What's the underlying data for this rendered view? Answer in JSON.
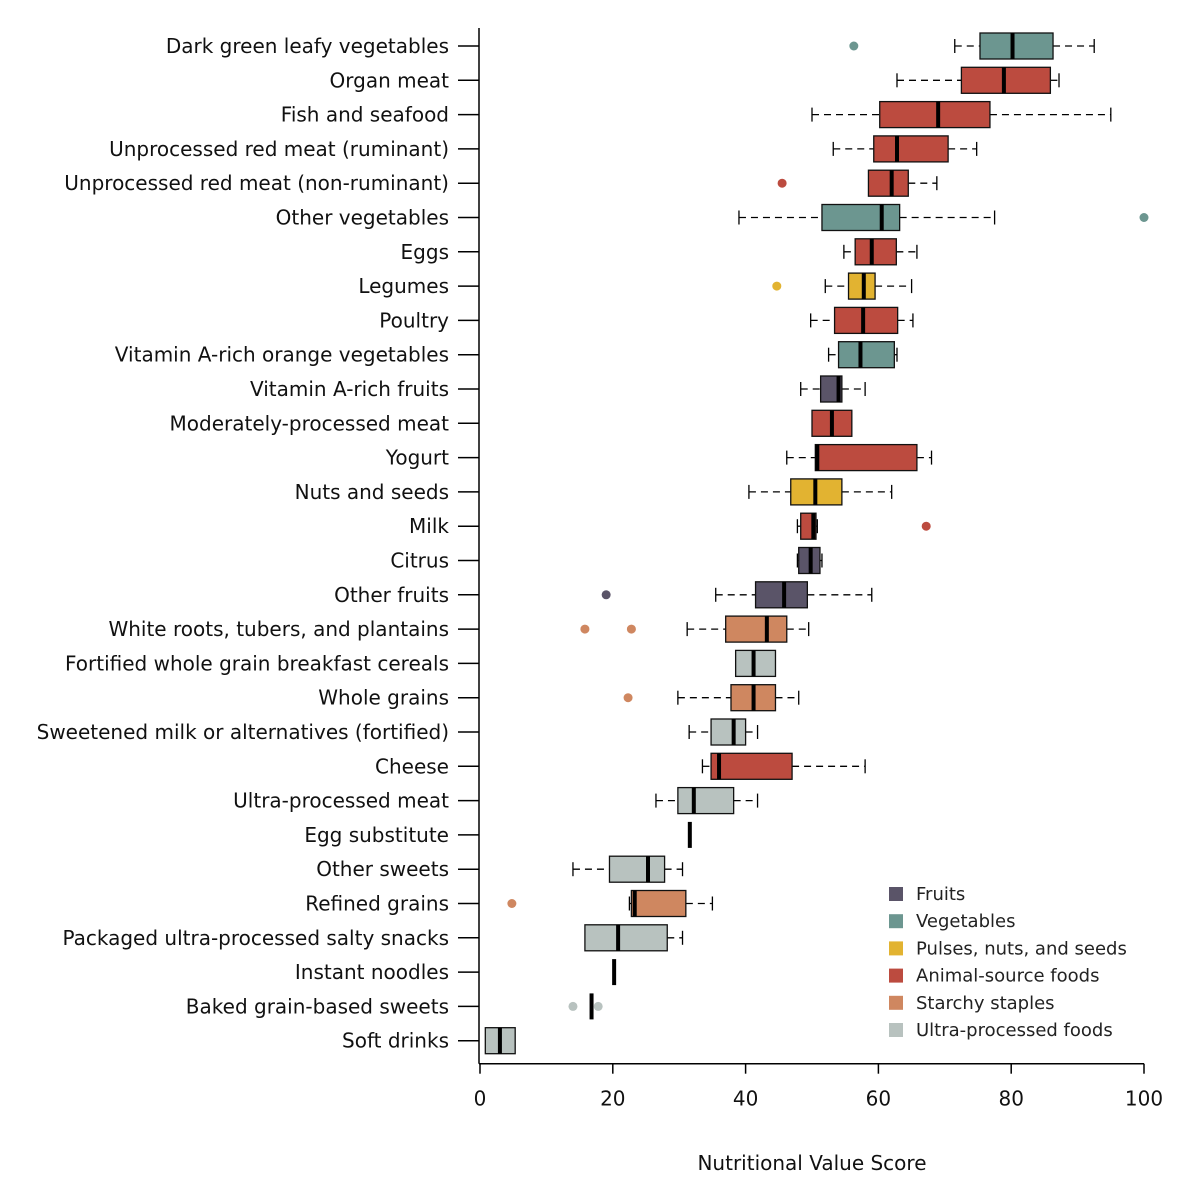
{
  "chart_data": {
    "type": "boxplot",
    "xlabel": "Nutritional Value Score",
    "xlim": [
      0,
      100
    ],
    "xticks": [
      0,
      20,
      40,
      60,
      80,
      100
    ],
    "orientation": "horizontal",
    "legend_position": "bottom-right",
    "groups": [
      {
        "name": "Fruits",
        "color": "#5a5468"
      },
      {
        "name": "Vegetables",
        "color": "#6c9690"
      },
      {
        "name": "Pulses, nuts, and seeds",
        "color": "#e2b331"
      },
      {
        "name": "Animal-source foods",
        "color": "#bc4b3f"
      },
      {
        "name": "Starchy staples",
        "color": "#cf8760"
      },
      {
        "name": "Ultra-processed foods",
        "color": "#b8c2bf"
      }
    ],
    "categories": [
      {
        "label": "Dark green leafy vegetables",
        "group": "Vegetables",
        "min": 71.5,
        "q1": 75.3,
        "median": 80.2,
        "q3": 86.3,
        "max": 92.5,
        "outliers": [
          56.3
        ]
      },
      {
        "label": "Organ meat",
        "group": "Animal-source foods",
        "min": 62.8,
        "q1": 72.5,
        "median": 78.9,
        "q3": 85.9,
        "max": 87.2,
        "outliers": []
      },
      {
        "label": "Fish and seafood",
        "group": "Animal-source foods",
        "min": 50.0,
        "q1": 60.2,
        "median": 69.0,
        "q3": 76.8,
        "max": 95.0,
        "outliers": []
      },
      {
        "label": "Unprocessed red meat (ruminant)",
        "group": "Animal-source foods",
        "min": 53.2,
        "q1": 59.3,
        "median": 62.8,
        "q3": 70.5,
        "max": 74.8,
        "outliers": []
      },
      {
        "label": "Unprocessed red meat (non-ruminant)",
        "group": "Animal-source foods",
        "min": 58.5,
        "q1": 58.5,
        "median": 62.0,
        "q3": 64.5,
        "max": 68.8,
        "outliers": [
          45.5
        ]
      },
      {
        "label": "Other vegetables",
        "group": "Vegetables",
        "min": 39.0,
        "q1": 51.5,
        "median": 60.5,
        "q3": 63.2,
        "max": 77.5,
        "outliers": [
          100.0
        ]
      },
      {
        "label": "Eggs",
        "group": "Animal-source foods",
        "min": 54.8,
        "q1": 56.5,
        "median": 59.0,
        "q3": 62.7,
        "max": 65.8,
        "outliers": []
      },
      {
        "label": "Legumes",
        "group": "Pulses, nuts, and seeds",
        "min": 52.0,
        "q1": 55.5,
        "median": 57.8,
        "q3": 59.5,
        "max": 65.0,
        "outliers": [
          44.7
        ]
      },
      {
        "label": "Poultry",
        "group": "Animal-source foods",
        "min": 49.8,
        "q1": 53.4,
        "median": 57.7,
        "q3": 62.9,
        "max": 65.2,
        "outliers": []
      },
      {
        "label": "Vitamin A-rich orange vegetables",
        "group": "Vegetables",
        "min": 52.5,
        "q1": 54.0,
        "median": 57.3,
        "q3": 62.4,
        "max": 62.8,
        "outliers": []
      },
      {
        "label": "Vitamin A-rich fruits",
        "group": "Fruits",
        "min": 48.3,
        "q1": 51.3,
        "median": 54.0,
        "q3": 54.5,
        "max": 58.0,
        "outliers": []
      },
      {
        "label": "Moderately-processed meat",
        "group": "Animal-source foods",
        "min": 50.0,
        "q1": 50.0,
        "median": 53.0,
        "q3": 56.0,
        "max": 56.0,
        "outliers": []
      },
      {
        "label": "Yogurt",
        "group": "Animal-source foods",
        "min": 46.2,
        "q1": 50.5,
        "median": 50.8,
        "q3": 65.8,
        "max": 68.0,
        "outliers": []
      },
      {
        "label": "Nuts and seeds",
        "group": "Pulses, nuts, and seeds",
        "min": 40.5,
        "q1": 46.8,
        "median": 50.5,
        "q3": 54.5,
        "max": 62.0,
        "outliers": []
      },
      {
        "label": "Milk",
        "group": "Animal-source foods",
        "min": 47.8,
        "q1": 48.3,
        "median": 50.2,
        "q3": 50.6,
        "max": 50.8,
        "outliers": [
          67.2
        ]
      },
      {
        "label": "Citrus",
        "group": "Fruits",
        "min": 47.8,
        "q1": 48.0,
        "median": 49.8,
        "q3": 51.2,
        "max": 51.5,
        "outliers": []
      },
      {
        "label": "Other fruits",
        "group": "Fruits",
        "min": 35.5,
        "q1": 41.5,
        "median": 45.8,
        "q3": 49.3,
        "max": 59.0,
        "outliers": [
          19.0
        ]
      },
      {
        "label": "White roots, tubers, and plantains",
        "group": "Starchy staples",
        "min": 31.2,
        "q1": 37.0,
        "median": 43.2,
        "q3": 46.2,
        "max": 49.5,
        "outliers": [
          15.8,
          22.8
        ]
      },
      {
        "label": "Fortified whole grain breakfast cereals",
        "group": "Ultra-processed foods",
        "min": 38.5,
        "q1": 38.5,
        "median": 41.2,
        "q3": 44.5,
        "max": 44.5,
        "outliers": []
      },
      {
        "label": "Whole grains",
        "group": "Starchy staples",
        "min": 29.8,
        "q1": 37.8,
        "median": 41.2,
        "q3": 44.5,
        "max": 48.0,
        "outliers": [
          22.3
        ]
      },
      {
        "label": "Sweetened milk or alternatives (fortified)",
        "group": "Ultra-processed foods",
        "min": 31.5,
        "q1": 34.8,
        "median": 38.2,
        "q3": 40.0,
        "max": 41.8,
        "outliers": []
      },
      {
        "label": "Cheese",
        "group": "Animal-source foods",
        "min": 33.5,
        "q1": 34.8,
        "median": 36.0,
        "q3": 47.0,
        "max": 58.0,
        "outliers": []
      },
      {
        "label": "Ultra-processed meat",
        "group": "Ultra-processed foods",
        "min": 26.5,
        "q1": 29.8,
        "median": 32.2,
        "q3": 38.2,
        "max": 41.8,
        "outliers": []
      },
      {
        "label": "Egg substitute",
        "group": "Ultra-processed foods",
        "min": 31.6,
        "q1": 31.6,
        "median": 31.6,
        "q3": 31.6,
        "max": 31.6,
        "outliers": []
      },
      {
        "label": "Other sweets",
        "group": "Ultra-processed foods",
        "min": 14.0,
        "q1": 19.5,
        "median": 25.3,
        "q3": 27.8,
        "max": 30.5,
        "outliers": []
      },
      {
        "label": "Refined grains",
        "group": "Starchy staples",
        "min": 22.5,
        "q1": 22.8,
        "median": 23.3,
        "q3": 31.0,
        "max": 35.0,
        "outliers": [
          4.8
        ]
      },
      {
        "label": "Packaged ultra-processed salty snacks",
        "group": "Ultra-processed foods",
        "min": 15.8,
        "q1": 15.8,
        "median": 20.8,
        "q3": 28.2,
        "max": 30.5,
        "outliers": []
      },
      {
        "label": "Instant noodles",
        "group": "Ultra-processed foods",
        "min": 20.2,
        "q1": 20.2,
        "median": 20.2,
        "q3": 20.2,
        "max": 20.2,
        "outliers": []
      },
      {
        "label": "Baked grain-based sweets",
        "group": "Ultra-processed foods",
        "min": 16.8,
        "q1": 16.8,
        "median": 16.8,
        "q3": 16.8,
        "max": 16.8,
        "outliers": [
          14.0,
          17.8
        ]
      },
      {
        "label": "Soft drinks",
        "group": "Ultra-processed foods",
        "min": 0.8,
        "q1": 0.8,
        "median": 3.0,
        "q3": 5.3,
        "max": 5.3,
        "outliers": []
      }
    ]
  }
}
